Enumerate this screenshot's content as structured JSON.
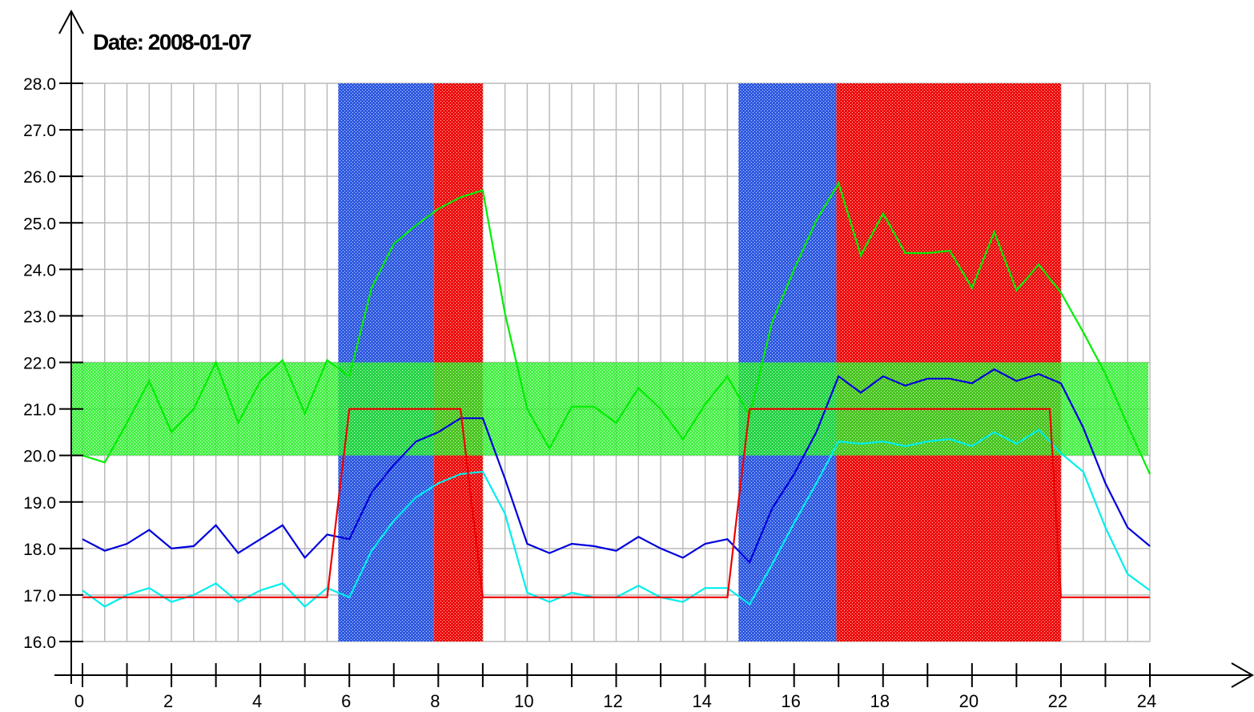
{
  "chart_data": {
    "type": "line",
    "title": "Date: 2008-01-07",
    "xlabel": "",
    "ylabel": "",
    "xlim": [
      0,
      24
    ],
    "ylim": [
      16.0,
      28.0
    ],
    "grid": true,
    "x_tick_labels": [
      "0",
      "2",
      "4",
      "6",
      "8",
      "10",
      "12",
      "14",
      "16",
      "18",
      "20",
      "22",
      "24"
    ],
    "y_tick_labels": [
      "16.0",
      "17.0",
      "18.0",
      "19.0",
      "20.0",
      "21.0",
      "22.0",
      "23.0",
      "24.0",
      "25.0",
      "26.0",
      "27.0",
      "28.0"
    ],
    "colors": {
      "green_series": "#00ee00",
      "blue_series": "#0000dd",
      "cyan_series": "#00eeee",
      "red_series": "#ee0000",
      "blue_band": "#3b63e6",
      "red_band": "#ee1111",
      "green_band": "#22ee22",
      "grid": "#bbbbbb"
    },
    "bands": [
      {
        "kind": "vertical",
        "x0": 5.75,
        "x1": 7.9,
        "color": "blue"
      },
      {
        "kind": "vertical",
        "x0": 7.9,
        "x1": 9.0,
        "color": "red"
      },
      {
        "kind": "vertical",
        "x0": 14.75,
        "x1": 16.95,
        "color": "blue"
      },
      {
        "kind": "vertical",
        "x0": 16.95,
        "x1": 22.0,
        "color": "red"
      },
      {
        "kind": "horizontal",
        "y0": 20.0,
        "y1": 22.0,
        "color": "green"
      }
    ],
    "series": [
      {
        "color": "green",
        "x": [
          0,
          0.5,
          1,
          1.5,
          2,
          2.5,
          3,
          3.5,
          4,
          4.5,
          5,
          5.5,
          6,
          6.5,
          7,
          7.5,
          8,
          8.5,
          9,
          9.5,
          10,
          10.5,
          11,
          11.5,
          12,
          12.5,
          13,
          13.5,
          14,
          14.5,
          15,
          15.5,
          16,
          16.5,
          17,
          17.5,
          18,
          18.5,
          19,
          19.5,
          20,
          20.5,
          21,
          21.5,
          22,
          22.5,
          23,
          23.5,
          24
        ],
        "values": [
          20.0,
          19.85,
          20.7,
          21.6,
          20.5,
          21.0,
          22.0,
          20.7,
          21.6,
          22.05,
          20.9,
          22.05,
          21.7,
          23.6,
          24.55,
          24.95,
          25.3,
          25.55,
          25.7,
          23.05,
          21.0,
          20.15,
          21.05,
          21.05,
          20.7,
          21.45,
          21.0,
          20.35,
          21.1,
          21.7,
          20.85,
          22.85,
          24.0,
          25.05,
          25.85,
          24.3,
          25.2,
          24.35,
          24.35,
          24.4,
          23.6,
          24.8,
          23.55,
          24.1,
          23.5,
          22.65,
          21.75,
          20.65,
          19.6
        ]
      },
      {
        "color": "blue",
        "x": [
          0,
          0.5,
          1,
          1.5,
          2,
          2.5,
          3,
          3.5,
          4,
          4.5,
          5,
          5.5,
          6,
          6.5,
          7,
          7.5,
          8,
          8.5,
          9,
          9.5,
          10,
          10.5,
          11,
          11.5,
          12,
          12.5,
          13,
          13.5,
          14,
          14.5,
          15,
          15.5,
          16,
          16.5,
          17,
          17.5,
          18,
          18.5,
          19,
          19.5,
          20,
          20.5,
          21,
          21.5,
          22,
          22.5,
          23,
          23.5,
          24
        ],
        "values": [
          18.2,
          17.95,
          18.1,
          18.4,
          18.0,
          18.05,
          18.5,
          17.9,
          18.2,
          18.5,
          17.8,
          18.3,
          18.2,
          19.2,
          19.8,
          20.3,
          20.5,
          20.8,
          20.8,
          19.5,
          18.1,
          17.9,
          18.1,
          18.05,
          17.95,
          18.25,
          18.0,
          17.8,
          18.1,
          18.2,
          17.7,
          18.85,
          19.6,
          20.5,
          21.7,
          21.35,
          21.7,
          21.5,
          21.65,
          21.65,
          21.55,
          21.85,
          21.6,
          21.75,
          21.55,
          20.6,
          19.4,
          18.45,
          18.05
        ]
      },
      {
        "color": "cyan",
        "x": [
          0,
          0.5,
          1,
          1.5,
          2,
          2.5,
          3,
          3.5,
          4,
          4.5,
          5,
          5.5,
          6,
          6.5,
          7,
          7.5,
          8,
          8.5,
          9,
          9.5,
          10,
          10.5,
          11,
          11.5,
          12,
          12.5,
          13,
          13.5,
          14,
          14.5,
          15,
          15.5,
          16,
          16.5,
          17,
          17.5,
          18,
          18.5,
          19,
          19.5,
          20,
          20.5,
          21,
          21.5,
          22,
          22.5,
          23,
          23.5,
          24
        ],
        "values": [
          17.1,
          16.75,
          17.0,
          17.15,
          16.85,
          17.0,
          17.25,
          16.85,
          17.1,
          17.25,
          16.75,
          17.15,
          16.95,
          17.95,
          18.6,
          19.1,
          19.4,
          19.6,
          19.65,
          18.75,
          17.05,
          16.85,
          17.05,
          16.95,
          16.95,
          17.2,
          16.95,
          16.85,
          17.15,
          17.15,
          16.8,
          17.65,
          18.55,
          19.4,
          20.3,
          20.25,
          20.3,
          20.2,
          20.3,
          20.35,
          20.2,
          20.5,
          20.25,
          20.55,
          20.05,
          19.65,
          18.45,
          17.45,
          17.1
        ]
      },
      {
        "color": "red",
        "x": [
          0,
          5.5,
          5.75,
          6,
          6.5,
          7,
          7.5,
          8,
          8.5,
          9,
          10,
          11,
          12,
          13,
          14,
          14.5,
          14.75,
          15,
          15.5,
          16,
          16.5,
          17,
          18,
          19,
          20,
          21,
          21.5,
          21.75,
          22,
          23,
          24
        ],
        "values": [
          16.95,
          16.95,
          19.0,
          21.0,
          21.0,
          21.0,
          21.0,
          21.0,
          21.0,
          16.95,
          16.95,
          16.95,
          16.95,
          16.95,
          16.95,
          16.95,
          19.0,
          21.0,
          21.0,
          21.0,
          21.0,
          21.0,
          21.0,
          21.0,
          21.0,
          21.0,
          21.0,
          21.0,
          16.95,
          16.95,
          16.95
        ]
      }
    ]
  }
}
